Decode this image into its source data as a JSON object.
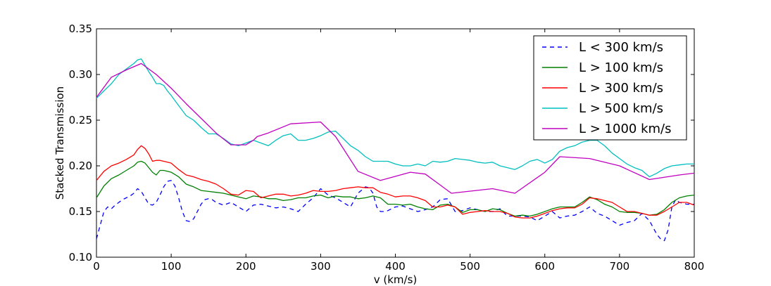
{
  "chart_data": {
    "type": "line",
    "title": "",
    "xlabel": "v (km/s)",
    "ylabel": "Stacked Transmission",
    "xlim": [
      0,
      800
    ],
    "ylim": [
      0.1,
      0.35
    ],
    "xticks": [
      0,
      100,
      200,
      300,
      400,
      500,
      600,
      700,
      800
    ],
    "yticks": [
      0.1,
      0.15,
      0.2,
      0.25,
      0.3,
      0.35
    ],
    "xtick_labels": [
      "0",
      "100",
      "200",
      "300",
      "400",
      "500",
      "600",
      "700",
      "800"
    ],
    "ytick_labels": [
      "0.10",
      "0.15",
      "0.20",
      "0.25",
      "0.30",
      "0.35"
    ],
    "grid": false,
    "legend_position": "top-right",
    "series": [
      {
        "name": "L < 300 km/s",
        "color": "#0000ff",
        "dashed": true,
        "x": [
          0,
          5,
          10,
          15,
          20,
          25,
          30,
          35,
          40,
          45,
          50,
          55,
          60,
          65,
          70,
          75,
          80,
          85,
          90,
          95,
          100,
          105,
          110,
          115,
          120,
          125,
          130,
          135,
          140,
          145,
          150,
          155,
          160,
          170,
          180,
          190,
          200,
          210,
          220,
          230,
          240,
          250,
          260,
          270,
          280,
          290,
          300,
          310,
          320,
          330,
          340,
          350,
          360,
          365,
          370,
          375,
          380,
          385,
          390,
          400,
          410,
          420,
          430,
          440,
          450,
          460,
          470,
          480,
          490,
          500,
          510,
          520,
          530,
          540,
          550,
          560,
          570,
          580,
          590,
          600,
          610,
          620,
          630,
          640,
          650,
          660,
          670,
          680,
          690,
          700,
          710,
          720,
          730,
          740,
          750,
          755,
          760,
          765,
          770,
          775,
          780,
          790,
          800
        ],
        "values": [
          0.12,
          0.135,
          0.15,
          0.155,
          0.153,
          0.157,
          0.16,
          0.163,
          0.165,
          0.167,
          0.17,
          0.175,
          0.172,
          0.165,
          0.158,
          0.157,
          0.16,
          0.168,
          0.177,
          0.183,
          0.184,
          0.178,
          0.165,
          0.15,
          0.14,
          0.139,
          0.142,
          0.15,
          0.158,
          0.163,
          0.164,
          0.163,
          0.16,
          0.157,
          0.16,
          0.155,
          0.15,
          0.157,
          0.158,
          0.156,
          0.154,
          0.155,
          0.153,
          0.15,
          0.158,
          0.165,
          0.175,
          0.168,
          0.165,
          0.16,
          0.155,
          0.17,
          0.177,
          0.176,
          0.17,
          0.155,
          0.15,
          0.15,
          0.151,
          0.155,
          0.156,
          0.153,
          0.15,
          0.152,
          0.155,
          0.163,
          0.164,
          0.15,
          0.151,
          0.154,
          0.152,
          0.15,
          0.15,
          0.153,
          0.145,
          0.145,
          0.145,
          0.144,
          0.14,
          0.145,
          0.15,
          0.143,
          0.145,
          0.146,
          0.15,
          0.155,
          0.148,
          0.145,
          0.14,
          0.135,
          0.138,
          0.14,
          0.148,
          0.14,
          0.125,
          0.12,
          0.118,
          0.13,
          0.155,
          0.163,
          0.16,
          0.158,
          0.158
        ]
      },
      {
        "name": "L > 100 km/s",
        "color": "#008000",
        "dashed": false,
        "x": [
          0,
          10,
          20,
          30,
          40,
          50,
          55,
          60,
          65,
          70,
          75,
          80,
          85,
          90,
          95,
          100,
          110,
          120,
          130,
          140,
          150,
          160,
          170,
          180,
          190,
          200,
          210,
          220,
          230,
          240,
          250,
          260,
          270,
          280,
          290,
          300,
          310,
          320,
          330,
          340,
          350,
          360,
          370,
          380,
          390,
          400,
          410,
          420,
          430,
          440,
          450,
          460,
          470,
          480,
          490,
          500,
          510,
          520,
          530,
          540,
          550,
          560,
          570,
          580,
          590,
          600,
          610,
          620,
          630,
          640,
          650,
          660,
          670,
          680,
          690,
          700,
          710,
          720,
          730,
          740,
          750,
          760,
          770,
          780,
          790,
          800
        ],
        "values": [
          0.165,
          0.178,
          0.186,
          0.19,
          0.195,
          0.2,
          0.204,
          0.205,
          0.203,
          0.198,
          0.193,
          0.19,
          0.195,
          0.195,
          0.194,
          0.193,
          0.188,
          0.18,
          0.177,
          0.173,
          0.172,
          0.171,
          0.17,
          0.168,
          0.166,
          0.164,
          0.167,
          0.166,
          0.164,
          0.164,
          0.162,
          0.163,
          0.165,
          0.165,
          0.167,
          0.168,
          0.165,
          0.167,
          0.166,
          0.166,
          0.164,
          0.165,
          0.167,
          0.165,
          0.158,
          0.158,
          0.157,
          0.158,
          0.155,
          0.153,
          0.152,
          0.157,
          0.158,
          0.155,
          0.149,
          0.152,
          0.152,
          0.15,
          0.153,
          0.152,
          0.148,
          0.145,
          0.146,
          0.145,
          0.147,
          0.15,
          0.153,
          0.155,
          0.155,
          0.155,
          0.16,
          0.166,
          0.163,
          0.158,
          0.155,
          0.15,
          0.149,
          0.149,
          0.148,
          0.146,
          0.147,
          0.152,
          0.16,
          0.165,
          0.167,
          0.168
        ]
      },
      {
        "name": "L > 300 km/s",
        "color": "#ff0000",
        "dashed": false,
        "x": [
          0,
          10,
          20,
          30,
          40,
          50,
          55,
          60,
          65,
          70,
          75,
          80,
          85,
          90,
          95,
          100,
          110,
          120,
          130,
          140,
          150,
          160,
          170,
          180,
          190,
          200,
          210,
          220,
          230,
          240,
          250,
          260,
          270,
          280,
          290,
          300,
          310,
          320,
          330,
          340,
          350,
          360,
          370,
          380,
          390,
          400,
          410,
          420,
          430,
          440,
          450,
          460,
          470,
          480,
          490,
          500,
          510,
          520,
          530,
          540,
          550,
          560,
          570,
          580,
          590,
          600,
          610,
          620,
          630,
          640,
          650,
          660,
          670,
          680,
          690,
          700,
          710,
          720,
          730,
          740,
          750,
          760,
          770,
          780,
          790,
          800
        ],
        "values": [
          0.184,
          0.194,
          0.2,
          0.203,
          0.207,
          0.212,
          0.218,
          0.222,
          0.219,
          0.213,
          0.205,
          0.206,
          0.206,
          0.205,
          0.204,
          0.203,
          0.196,
          0.19,
          0.188,
          0.185,
          0.183,
          0.18,
          0.175,
          0.169,
          0.168,
          0.173,
          0.172,
          0.165,
          0.167,
          0.169,
          0.169,
          0.167,
          0.168,
          0.17,
          0.173,
          0.172,
          0.172,
          0.173,
          0.175,
          0.176,
          0.177,
          0.176,
          0.176,
          0.171,
          0.169,
          0.166,
          0.167,
          0.167,
          0.165,
          0.162,
          0.155,
          0.155,
          0.157,
          0.155,
          0.147,
          0.149,
          0.15,
          0.151,
          0.15,
          0.15,
          0.148,
          0.144,
          0.143,
          0.143,
          0.145,
          0.148,
          0.151,
          0.153,
          0.154,
          0.154,
          0.158,
          0.165,
          0.164,
          0.162,
          0.16,
          0.155,
          0.15,
          0.15,
          0.148,
          0.146,
          0.146,
          0.15,
          0.155,
          0.16,
          0.16,
          0.157
        ]
      },
      {
        "name": "L > 500 km/s",
        "color": "#00bfbf",
        "dashed": false,
        "x": [
          0,
          10,
          20,
          30,
          40,
          50,
          55,
          60,
          65,
          70,
          75,
          80,
          85,
          90,
          95,
          100,
          110,
          120,
          130,
          140,
          150,
          160,
          170,
          180,
          190,
          200,
          210,
          220,
          230,
          240,
          250,
          260,
          270,
          280,
          290,
          300,
          310,
          320,
          330,
          340,
          350,
          360,
          370,
          380,
          390,
          400,
          410,
          420,
          430,
          440,
          450,
          460,
          470,
          480,
          490,
          500,
          510,
          520,
          530,
          540,
          550,
          560,
          570,
          580,
          590,
          600,
          610,
          620,
          630,
          640,
          650,
          660,
          670,
          680,
          690,
          700,
          710,
          720,
          730,
          740,
          750,
          760,
          770,
          780,
          790,
          800
        ],
        "values": [
          0.274,
          0.282,
          0.29,
          0.3,
          0.306,
          0.312,
          0.316,
          0.317,
          0.31,
          0.303,
          0.297,
          0.29,
          0.29,
          0.288,
          0.282,
          0.277,
          0.266,
          0.255,
          0.25,
          0.242,
          0.235,
          0.235,
          0.23,
          0.224,
          0.222,
          0.225,
          0.228,
          0.225,
          0.222,
          0.228,
          0.233,
          0.235,
          0.228,
          0.228,
          0.23,
          0.233,
          0.237,
          0.238,
          0.23,
          0.222,
          0.217,
          0.21,
          0.205,
          0.205,
          0.205,
          0.202,
          0.2,
          0.2,
          0.202,
          0.2,
          0.205,
          0.204,
          0.205,
          0.208,
          0.207,
          0.206,
          0.204,
          0.203,
          0.204,
          0.2,
          0.198,
          0.196,
          0.2,
          0.205,
          0.207,
          0.203,
          0.207,
          0.216,
          0.22,
          0.222,
          0.226,
          0.228,
          0.228,
          0.222,
          0.214,
          0.208,
          0.202,
          0.198,
          0.195,
          0.188,
          0.192,
          0.197,
          0.2,
          0.201,
          0.202,
          0.202
        ]
      },
      {
        "name": "L > 1000 km/s",
        "color": "#bf00bf",
        "dashed": false,
        "x": [
          0,
          20,
          40,
          60,
          80,
          100,
          120,
          140,
          160,
          180,
          200,
          210,
          215,
          230,
          260,
          300,
          320,
          350,
          380,
          420,
          440,
          475,
          530,
          560,
          600,
          620,
          660,
          700,
          740,
          780,
          800
        ],
        "values": [
          0.275,
          0.297,
          0.305,
          0.312,
          0.3,
          0.285,
          0.268,
          0.252,
          0.236,
          0.223,
          0.223,
          0.228,
          0.232,
          0.236,
          0.246,
          0.248,
          0.232,
          0.194,
          0.184,
          0.193,
          0.191,
          0.17,
          0.175,
          0.17,
          0.193,
          0.21,
          0.208,
          0.2,
          0.185,
          0.19,
          0.192
        ]
      }
    ]
  }
}
